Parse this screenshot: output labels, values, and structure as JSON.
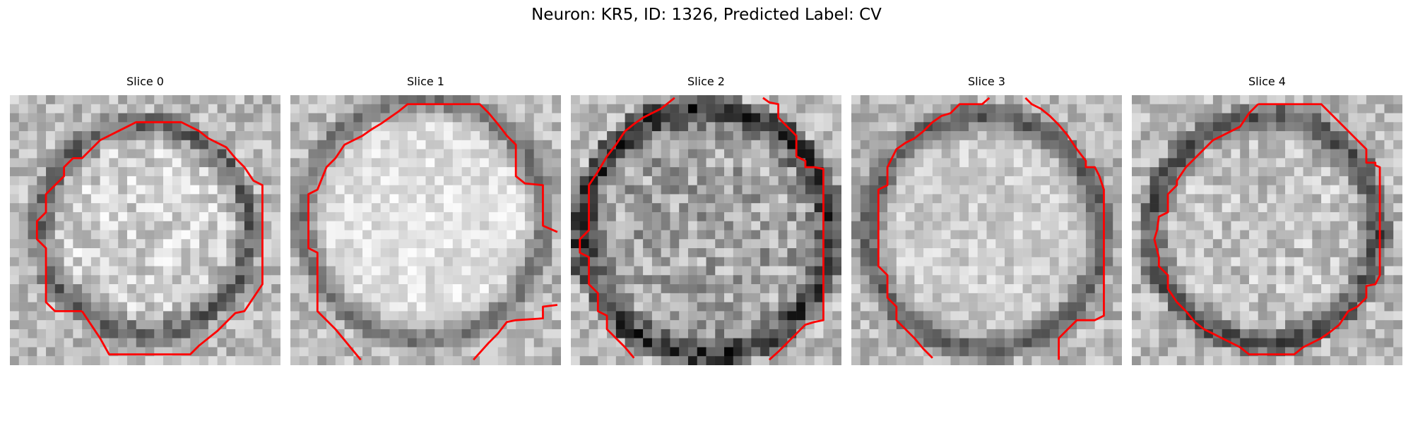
{
  "figure": {
    "title": "Neuron: KR5, ID: 1326, Predicted Label: CV"
  },
  "panels": [
    {
      "title": "Slice 0",
      "contour_color": "#ff0000"
    },
    {
      "title": "Slice 1",
      "contour_color": "#ff0000"
    },
    {
      "title": "Slice 2",
      "contour_color": "#ff0000"
    },
    {
      "title": "Slice 3",
      "contour_color": "#ff0000"
    },
    {
      "title": "Slice 4",
      "contour_color": "#ff0000"
    }
  ]
}
